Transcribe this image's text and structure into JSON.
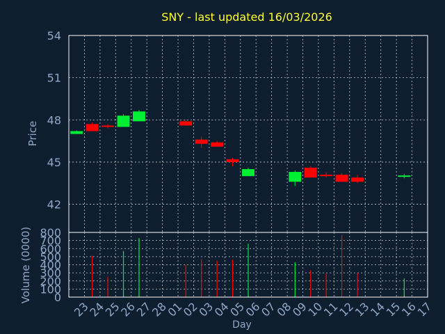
{
  "title": "SNY - last updated 16/03/2026",
  "colors": {
    "background": "#0f1e2f",
    "title": "#ffff33",
    "axis_text": "#8fa8c8",
    "frame": "#ffffff",
    "grid": "#ffffff",
    "up": "#00ee33",
    "down": "#ff0000"
  },
  "chart_data": [
    {
      "type": "candlestick",
      "ylabel": "Price",
      "ylim": [
        40,
        54
      ],
      "yticks": [
        42,
        45,
        48,
        51,
        54
      ],
      "grid": true,
      "categories": [
        "23",
        "24",
        "25",
        "26",
        "27",
        "28",
        "01",
        "02",
        "03",
        "04",
        "05",
        "06",
        "07",
        "08",
        "09",
        "10",
        "11",
        "12",
        "13",
        "14",
        "15",
        "16",
        "17"
      ],
      "candles": [
        {
          "day": "23",
          "open": 47.0,
          "high": 47.25,
          "low": 47.0,
          "close": 47.2
        },
        {
          "day": "24",
          "open": 47.7,
          "high": 47.8,
          "low": 47.2,
          "close": 47.2
        },
        {
          "day": "25",
          "open": 47.6,
          "high": 47.7,
          "low": 47.4,
          "close": 47.5
        },
        {
          "day": "26",
          "open": 47.5,
          "high": 48.4,
          "low": 47.5,
          "close": 48.3
        },
        {
          "day": "27",
          "open": 47.9,
          "high": 48.7,
          "low": 47.9,
          "close": 48.6
        },
        {
          "day": "02",
          "open": 47.9,
          "high": 48.0,
          "low": 47.6,
          "close": 47.6
        },
        {
          "day": "03",
          "open": 46.6,
          "high": 46.8,
          "low": 46.0,
          "close": 46.3
        },
        {
          "day": "04",
          "open": 46.4,
          "high": 46.5,
          "low": 46.1,
          "close": 46.1
        },
        {
          "day": "05",
          "open": 45.2,
          "high": 45.3,
          "low": 44.7,
          "close": 45.0
        },
        {
          "day": "06",
          "open": 44.0,
          "high": 44.6,
          "low": 44.0,
          "close": 44.5
        },
        {
          "day": "09",
          "open": 43.6,
          "high": 44.4,
          "low": 43.3,
          "close": 44.3
        },
        {
          "day": "10",
          "open": 44.6,
          "high": 44.7,
          "low": 43.9,
          "close": 43.9
        },
        {
          "day": "11",
          "open": 44.1,
          "high": 44.3,
          "low": 43.9,
          "close": 44.0
        },
        {
          "day": "12",
          "open": 44.1,
          "high": 44.2,
          "low": 43.6,
          "close": 43.6
        },
        {
          "day": "13",
          "open": 43.9,
          "high": 44.1,
          "low": 43.5,
          "close": 43.6
        },
        {
          "day": "16",
          "open": 43.95,
          "high": 44.15,
          "low": 43.85,
          "close": 44.05
        }
      ]
    },
    {
      "type": "bar",
      "ylabel": "Volume (0000)",
      "xlabel": "Day",
      "ylim": [
        0,
        800
      ],
      "yticks": [
        0,
        100,
        200,
        300,
        400,
        500,
        600,
        700,
        800
      ],
      "grid": true,
      "categories": [
        "23",
        "24",
        "25",
        "26",
        "27",
        "28",
        "01",
        "02",
        "03",
        "04",
        "05",
        "06",
        "07",
        "08",
        "09",
        "10",
        "11",
        "12",
        "13",
        "14",
        "15",
        "16",
        "17"
      ],
      "bars": [
        {
          "day": "24",
          "value": 510,
          "direction": "down"
        },
        {
          "day": "25",
          "value": 250,
          "direction": "down"
        },
        {
          "day": "26",
          "value": 570,
          "direction": "up"
        },
        {
          "day": "27",
          "value": 730,
          "direction": "up"
        },
        {
          "day": "02",
          "value": 400,
          "direction": "down"
        },
        {
          "day": "03",
          "value": 470,
          "direction": "down"
        },
        {
          "day": "04",
          "value": 450,
          "direction": "down"
        },
        {
          "day": "05",
          "value": 460,
          "direction": "down"
        },
        {
          "day": "06",
          "value": 660,
          "direction": "up"
        },
        {
          "day": "09",
          "value": 430,
          "direction": "up"
        },
        {
          "day": "10",
          "value": 330,
          "direction": "down"
        },
        {
          "day": "11",
          "value": 290,
          "direction": "down"
        },
        {
          "day": "12",
          "value": 770,
          "direction": "down"
        },
        {
          "day": "13",
          "value": 300,
          "direction": "down"
        },
        {
          "day": "16",
          "value": 230,
          "direction": "up"
        }
      ]
    }
  ]
}
